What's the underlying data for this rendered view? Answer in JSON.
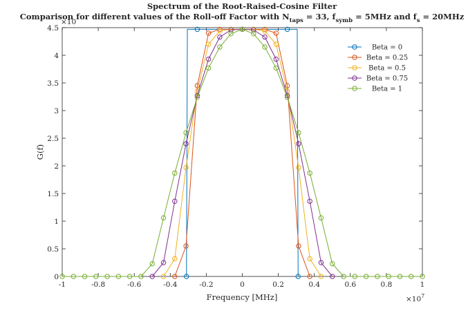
{
  "chart_data": {
    "type": "line",
    "title": "Spectrum of the Root-Raised-Cosine Filter",
    "subtitle": {
      "part1": "Comparison for different values of the Roll-off Factor with N",
      "sub1": "taps",
      "part2": " = 33, f",
      "sub2": "symb",
      "part3": " = 5MHz and f",
      "sub3": "s",
      "part4": " = 20MHz"
    },
    "xlabel": "Frequency [MHz]",
    "ylabel": "G(f)",
    "x_exponent_label": "×10",
    "x_exponent_power": "7",
    "y_exponent_label": "×10",
    "xlim": [
      -1,
      1
    ],
    "ylim": [
      0,
      4.5
    ],
    "x_ticks": [
      -1,
      -0.8,
      -0.6,
      -0.4,
      -0.2,
      0,
      0.2,
      0.4,
      0.6,
      0.8,
      1
    ],
    "x_tick_labels": [
      "-1",
      "-0.8",
      "-0.6",
      "-0.4",
      "-0.2",
      "0",
      "0.2",
      "0.4",
      "0.6",
      "0.8",
      "1"
    ],
    "y_ticks": [
      0,
      0.5,
      1,
      1.5,
      2,
      2.5,
      3,
      3.5,
      4,
      4.5
    ],
    "y_tick_labels": [
      "0",
      "0.5",
      "1",
      "1.5",
      "2",
      "2.5",
      "3",
      "3.5",
      "4",
      "4.5"
    ],
    "x_step": 0.0625,
    "x_points": [
      -1,
      -0.9375,
      -0.875,
      -0.8125,
      -0.75,
      -0.6875,
      -0.625,
      -0.5625,
      -0.5,
      -0.4375,
      -0.375,
      -0.3125,
      -0.25,
      -0.1875,
      -0.125,
      -0.0625,
      0,
      0.0625,
      0.125,
      0.1875,
      0.25,
      0.3125,
      0.375,
      0.4375,
      0.5,
      0.5625,
      0.625,
      0.6875,
      0.75,
      0.8125,
      0.875,
      0.9375,
      1
    ],
    "grid": false,
    "legend_position": "top-right",
    "series": [
      {
        "name": "Beta = 0",
        "color": "#0072BD",
        "values": [
          0,
          0,
          0,
          0,
          0,
          0,
          0,
          0,
          0,
          0,
          0,
          0,
          4.47,
          4.47,
          4.47,
          4.47,
          4.47,
          4.47,
          4.47,
          4.47,
          4.47,
          0,
          0,
          0,
          0,
          0,
          0,
          0,
          0,
          0,
          0,
          0,
          0
        ],
        "x_custom": [
          -1,
          -0.9375,
          -0.875,
          -0.8125,
          -0.75,
          -0.6875,
          -0.625,
          -0.5625,
          -0.5,
          -0.4375,
          -0.375,
          -0.3125,
          -0.25,
          -0.1875,
          -0.125,
          -0.0625,
          0,
          0.0625,
          0.125,
          0.1875,
          0.25,
          0.3125,
          0.375,
          0.4375,
          0.5,
          0.5625,
          0.625,
          0.6875,
          0.75,
          0.8125,
          0.875,
          0.9375,
          1
        ],
        "markers": [
          {
            "x": -0.31,
            "y": 0
          },
          {
            "x": -0.25,
            "y": 4.47
          },
          {
            "x": 0.25,
            "y": 4.47
          },
          {
            "x": 0.31,
            "y": 0
          }
        ],
        "line": [
          {
            "x": -0.31,
            "y": 0
          },
          {
            "x": -0.305,
            "y": 4.47
          },
          {
            "x": -0.25,
            "y": 4.47
          },
          {
            "x": 0.25,
            "y": 4.47
          },
          {
            "x": 0.305,
            "y": 4.47
          },
          {
            "x": 0.31,
            "y": 0
          }
        ]
      },
      {
        "name": "Beta = 0.25",
        "color": "#D95319",
        "points": [
          {
            "x": -0.375,
            "y": 0
          },
          {
            "x": -0.3125,
            "y": 0.55
          },
          {
            "x": -0.25,
            "y": 3.45
          },
          {
            "x": -0.1875,
            "y": 4.4
          },
          {
            "x": -0.125,
            "y": 4.47
          },
          {
            "x": -0.0625,
            "y": 4.47
          },
          {
            "x": 0,
            "y": 4.47
          },
          {
            "x": 0.0625,
            "y": 4.47
          },
          {
            "x": 0.125,
            "y": 4.47
          },
          {
            "x": 0.1875,
            "y": 4.4
          },
          {
            "x": 0.25,
            "y": 3.45
          },
          {
            "x": 0.3125,
            "y": 0.55
          },
          {
            "x": 0.375,
            "y": 0
          }
        ]
      },
      {
        "name": "Beta = 0.5",
        "color": "#EDB120",
        "points": [
          {
            "x": -0.4375,
            "y": 0
          },
          {
            "x": -0.375,
            "y": 0.32
          },
          {
            "x": -0.3125,
            "y": 1.97
          },
          {
            "x": -0.25,
            "y": 3.35
          },
          {
            "x": -0.1875,
            "y": 4.2
          },
          {
            "x": -0.125,
            "y": 4.44
          },
          {
            "x": -0.0625,
            "y": 4.47
          },
          {
            "x": 0,
            "y": 4.47
          },
          {
            "x": 0.0625,
            "y": 4.47
          },
          {
            "x": 0.125,
            "y": 4.44
          },
          {
            "x": 0.1875,
            "y": 4.2
          },
          {
            "x": 0.25,
            "y": 3.35
          },
          {
            "x": 0.3125,
            "y": 1.97
          },
          {
            "x": 0.375,
            "y": 0.32
          },
          {
            "x": 0.4375,
            "y": 0
          }
        ]
      },
      {
        "name": "Beta = 0.75",
        "color": "#7E2F8E",
        "points": [
          {
            "x": -0.5,
            "y": 0
          },
          {
            "x": -0.4375,
            "y": 0.25
          },
          {
            "x": -0.375,
            "y": 1.36
          },
          {
            "x": -0.3125,
            "y": 2.4
          },
          {
            "x": -0.25,
            "y": 3.27
          },
          {
            "x": -0.1875,
            "y": 3.93
          },
          {
            "x": -0.125,
            "y": 4.33
          },
          {
            "x": -0.0625,
            "y": 4.46
          },
          {
            "x": 0,
            "y": 4.47
          },
          {
            "x": 0.0625,
            "y": 4.46
          },
          {
            "x": 0.125,
            "y": 4.33
          },
          {
            "x": 0.1875,
            "y": 3.93
          },
          {
            "x": 0.25,
            "y": 3.27
          },
          {
            "x": 0.3125,
            "y": 2.4
          },
          {
            "x": 0.375,
            "y": 1.36
          },
          {
            "x": 0.4375,
            "y": 0.25
          },
          {
            "x": 0.5,
            "y": 0
          }
        ]
      },
      {
        "name": "Beta = 1",
        "color": "#77AC30",
        "points": [
          {
            "x": -1,
            "y": 0
          },
          {
            "x": -0.9375,
            "y": 0
          },
          {
            "x": -0.875,
            "y": 0
          },
          {
            "x": -0.8125,
            "y": 0
          },
          {
            "x": -0.75,
            "y": 0
          },
          {
            "x": -0.6875,
            "y": 0
          },
          {
            "x": -0.625,
            "y": 0
          },
          {
            "x": -0.5625,
            "y": 0
          },
          {
            "x": -0.5,
            "y": 0.23
          },
          {
            "x": -0.4375,
            "y": 1.06
          },
          {
            "x": -0.375,
            "y": 1.87
          },
          {
            "x": -0.3125,
            "y": 2.6
          },
          {
            "x": -0.25,
            "y": 3.24
          },
          {
            "x": -0.1875,
            "y": 3.77
          },
          {
            "x": -0.125,
            "y": 4.15
          },
          {
            "x": -0.0625,
            "y": 4.39
          },
          {
            "x": 0,
            "y": 4.47
          },
          {
            "x": 0.0625,
            "y": 4.39
          },
          {
            "x": 0.125,
            "y": 4.15
          },
          {
            "x": 0.1875,
            "y": 3.77
          },
          {
            "x": 0.25,
            "y": 3.24
          },
          {
            "x": 0.3125,
            "y": 2.6
          },
          {
            "x": 0.375,
            "y": 1.87
          },
          {
            "x": 0.4375,
            "y": 1.06
          },
          {
            "x": 0.5,
            "y": 0.23
          },
          {
            "x": 0.5625,
            "y": 0
          },
          {
            "x": 0.625,
            "y": 0
          },
          {
            "x": 0.6875,
            "y": 0
          },
          {
            "x": 0.75,
            "y": 0
          },
          {
            "x": 0.8125,
            "y": 0
          },
          {
            "x": 0.875,
            "y": 0
          },
          {
            "x": 0.9375,
            "y": 0
          },
          {
            "x": 1,
            "y": 0
          }
        ]
      }
    ]
  }
}
